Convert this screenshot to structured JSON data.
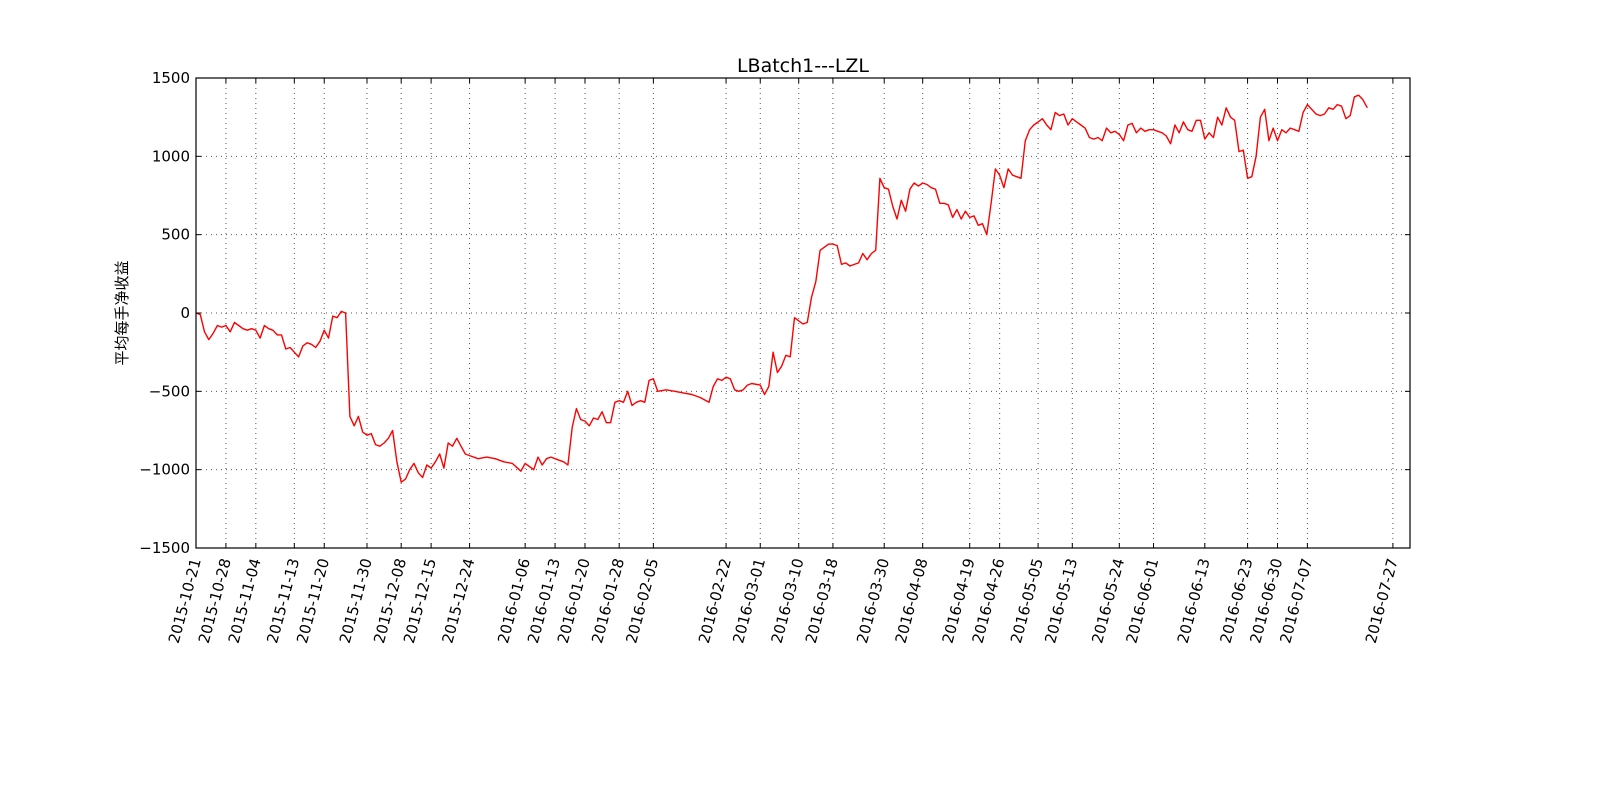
{
  "chart_data": {
    "type": "line",
    "title": "LBatch1---LZL",
    "xlabel": "",
    "ylabel": "平均每手净收益",
    "ylim": [
      -1500,
      1500
    ],
    "xlim": [
      "2015-10-21",
      "2016-07-31"
    ],
    "yticks": [
      1500,
      1000,
      500,
      0,
      -500,
      -1000,
      -1500
    ],
    "ytick_labels": [
      "1500",
      "1000",
      "500",
      "0",
      "−500",
      "−1000",
      "−1500"
    ],
    "xticks": [
      "2015-10-21",
      "2015-10-28",
      "2015-11-04",
      "2015-11-13",
      "2015-11-20",
      "2015-11-30",
      "2015-12-08",
      "2015-12-15",
      "2015-12-24",
      "2016-01-06",
      "2016-01-13",
      "2016-01-20",
      "2016-01-28",
      "2016-02-05",
      "2016-02-22",
      "2016-03-01",
      "2016-03-10",
      "2016-03-18",
      "2016-03-30",
      "2016-04-08",
      "2016-04-19",
      "2016-04-26",
      "2016-05-05",
      "2016-05-13",
      "2016-05-24",
      "2016-06-01",
      "2016-06-13",
      "2016-06-23",
      "2016-06-30",
      "2016-07-07",
      "2016-07-27"
    ],
    "grid": true,
    "series": [
      {
        "color": "#ff0000",
        "points": [
          [
            "2015-10-21",
            0
          ],
          [
            "2015-10-22",
            -10
          ],
          [
            "2015-10-23",
            -120
          ],
          [
            "2015-10-24",
            -170
          ],
          [
            "2015-10-25",
            -130
          ],
          [
            "2015-10-26",
            -80
          ],
          [
            "2015-10-27",
            -90
          ],
          [
            "2015-10-28",
            -80
          ],
          [
            "2015-10-29",
            -120
          ],
          [
            "2015-10-30",
            -60
          ],
          [
            "2015-10-31",
            -80
          ],
          [
            "2015-11-01",
            -100
          ],
          [
            "2015-11-02",
            -110
          ],
          [
            "2015-11-03",
            -100
          ],
          [
            "2015-11-04",
            -110
          ],
          [
            "2015-11-05",
            -160
          ],
          [
            "2015-11-06",
            -80
          ],
          [
            "2015-11-07",
            -100
          ],
          [
            "2015-11-08",
            -110
          ],
          [
            "2015-11-09",
            -140
          ],
          [
            "2015-11-10",
            -140
          ],
          [
            "2015-11-11",
            -230
          ],
          [
            "2015-11-12",
            -220
          ],
          [
            "2015-11-13",
            -250
          ],
          [
            "2015-11-14",
            -280
          ],
          [
            "2015-11-15",
            -210
          ],
          [
            "2015-11-16",
            -190
          ],
          [
            "2015-11-17",
            -200
          ],
          [
            "2015-11-18",
            -220
          ],
          [
            "2015-11-19",
            -180
          ],
          [
            "2015-11-20",
            -110
          ],
          [
            "2015-11-21",
            -160
          ],
          [
            "2015-11-22",
            -20
          ],
          [
            "2015-11-23",
            -30
          ],
          [
            "2015-11-24",
            10
          ],
          [
            "2015-11-25",
            0
          ],
          [
            "2015-11-26",
            -660
          ],
          [
            "2015-11-27",
            -720
          ],
          [
            "2015-11-28",
            -660
          ],
          [
            "2015-11-29",
            -760
          ],
          [
            "2015-11-30",
            -780
          ],
          [
            "2015-12-01",
            -770
          ],
          [
            "2015-12-02",
            -840
          ],
          [
            "2015-12-03",
            -850
          ],
          [
            "2015-12-04",
            -830
          ],
          [
            "2015-12-05",
            -800
          ],
          [
            "2015-12-06",
            -750
          ],
          [
            "2015-12-07",
            -950
          ],
          [
            "2015-12-08",
            -1080
          ],
          [
            "2015-12-09",
            -1060
          ],
          [
            "2015-12-10",
            -1000
          ],
          [
            "2015-12-11",
            -960
          ],
          [
            "2015-12-12",
            -1020
          ],
          [
            "2015-12-13",
            -1050
          ],
          [
            "2015-12-14",
            -970
          ],
          [
            "2015-12-15",
            -990
          ],
          [
            "2015-12-16",
            -950
          ],
          [
            "2015-12-17",
            -900
          ],
          [
            "2015-12-18",
            -990
          ],
          [
            "2015-12-19",
            -830
          ],
          [
            "2015-12-20",
            -850
          ],
          [
            "2015-12-21",
            -800
          ],
          [
            "2015-12-22",
            -850
          ],
          [
            "2015-12-23",
            -900
          ],
          [
            "2015-12-24",
            -910
          ],
          [
            "2015-12-26",
            -930
          ],
          [
            "2015-12-28",
            -920
          ],
          [
            "2015-12-30",
            -930
          ],
          [
            "2016-01-01",
            -950
          ],
          [
            "2016-01-03",
            -960
          ],
          [
            "2016-01-05",
            -1010
          ],
          [
            "2016-01-06",
            -960
          ],
          [
            "2016-01-07",
            -980
          ],
          [
            "2016-01-08",
            -1000
          ],
          [
            "2016-01-09",
            -920
          ],
          [
            "2016-01-10",
            -970
          ],
          [
            "2016-01-11",
            -930
          ],
          [
            "2016-01-12",
            -920
          ],
          [
            "2016-01-13",
            -930
          ],
          [
            "2016-01-14",
            -940
          ],
          [
            "2016-01-15",
            -950
          ],
          [
            "2016-01-16",
            -970
          ],
          [
            "2016-01-17",
            -730
          ],
          [
            "2016-01-18",
            -610
          ],
          [
            "2016-01-19",
            -680
          ],
          [
            "2016-01-20",
            -690
          ],
          [
            "2016-01-21",
            -720
          ],
          [
            "2016-01-22",
            -670
          ],
          [
            "2016-01-23",
            -680
          ],
          [
            "2016-01-24",
            -630
          ],
          [
            "2016-01-25",
            -700
          ],
          [
            "2016-01-26",
            -700
          ],
          [
            "2016-01-27",
            -570
          ],
          [
            "2016-01-28",
            -560
          ],
          [
            "2016-01-29",
            -570
          ],
          [
            "2016-01-30",
            -500
          ],
          [
            "2016-01-31",
            -590
          ],
          [
            "2016-02-01",
            -570
          ],
          [
            "2016-02-02",
            -560
          ],
          [
            "2016-02-03",
            -570
          ],
          [
            "2016-02-04",
            -430
          ],
          [
            "2016-02-05",
            -420
          ],
          [
            "2016-02-06",
            -500
          ],
          [
            "2016-02-08",
            -490
          ],
          [
            "2016-02-10",
            -500
          ],
          [
            "2016-02-12",
            -510
          ],
          [
            "2016-02-14",
            -520
          ],
          [
            "2016-02-16",
            -540
          ],
          [
            "2016-02-18",
            -570
          ],
          [
            "2016-02-19",
            -470
          ],
          [
            "2016-02-20",
            -420
          ],
          [
            "2016-02-21",
            -430
          ],
          [
            "2016-02-22",
            -410
          ],
          [
            "2016-02-23",
            -420
          ],
          [
            "2016-02-24",
            -490
          ],
          [
            "2016-02-25",
            -500
          ],
          [
            "2016-02-26",
            -490
          ],
          [
            "2016-02-27",
            -460
          ],
          [
            "2016-02-28",
            -450
          ],
          [
            "2016-03-01",
            -460
          ],
          [
            "2016-03-02",
            -520
          ],
          [
            "2016-03-03",
            -470
          ],
          [
            "2016-03-04",
            -250
          ],
          [
            "2016-03-05",
            -380
          ],
          [
            "2016-03-06",
            -340
          ],
          [
            "2016-03-07",
            -270
          ],
          [
            "2016-03-08",
            -280
          ],
          [
            "2016-03-09",
            -30
          ],
          [
            "2016-03-10",
            -50
          ],
          [
            "2016-03-11",
            -70
          ],
          [
            "2016-03-12",
            -60
          ],
          [
            "2016-03-13",
            100
          ],
          [
            "2016-03-14",
            200
          ],
          [
            "2016-03-15",
            400
          ],
          [
            "2016-03-16",
            420
          ],
          [
            "2016-03-17",
            440
          ],
          [
            "2016-03-18",
            440
          ],
          [
            "2016-03-19",
            430
          ],
          [
            "2016-03-20",
            310
          ],
          [
            "2016-03-21",
            320
          ],
          [
            "2016-03-22",
            300
          ],
          [
            "2016-03-23",
            310
          ],
          [
            "2016-03-24",
            320
          ],
          [
            "2016-03-25",
            380
          ],
          [
            "2016-03-26",
            340
          ],
          [
            "2016-03-27",
            380
          ],
          [
            "2016-03-28",
            400
          ],
          [
            "2016-03-29",
            860
          ],
          [
            "2016-03-30",
            800
          ],
          [
            "2016-03-31",
            790
          ],
          [
            "2016-04-01",
            680
          ],
          [
            "2016-04-02",
            600
          ],
          [
            "2016-04-03",
            720
          ],
          [
            "2016-04-04",
            650
          ],
          [
            "2016-04-05",
            790
          ],
          [
            "2016-04-06",
            830
          ],
          [
            "2016-04-07",
            810
          ],
          [
            "2016-04-08",
            830
          ],
          [
            "2016-04-09",
            820
          ],
          [
            "2016-04-10",
            800
          ],
          [
            "2016-04-11",
            790
          ],
          [
            "2016-04-12",
            700
          ],
          [
            "2016-04-13",
            700
          ],
          [
            "2016-04-14",
            690
          ],
          [
            "2016-04-15",
            610
          ],
          [
            "2016-04-16",
            660
          ],
          [
            "2016-04-17",
            600
          ],
          [
            "2016-04-18",
            650
          ],
          [
            "2016-04-19",
            610
          ],
          [
            "2016-04-20",
            620
          ],
          [
            "2016-04-21",
            560
          ],
          [
            "2016-04-22",
            570
          ],
          [
            "2016-04-23",
            500
          ],
          [
            "2016-04-24",
            700
          ],
          [
            "2016-04-25",
            920
          ],
          [
            "2016-04-26",
            880
          ],
          [
            "2016-04-27",
            800
          ],
          [
            "2016-04-28",
            920
          ],
          [
            "2016-04-29",
            880
          ],
          [
            "2016-04-30",
            870
          ],
          [
            "2016-05-01",
            860
          ],
          [
            "2016-05-02",
            1100
          ],
          [
            "2016-05-03",
            1170
          ],
          [
            "2016-05-04",
            1200
          ],
          [
            "2016-05-05",
            1220
          ],
          [
            "2016-05-06",
            1240
          ],
          [
            "2016-05-07",
            1200
          ],
          [
            "2016-05-08",
            1170
          ],
          [
            "2016-05-09",
            1280
          ],
          [
            "2016-05-10",
            1260
          ],
          [
            "2016-05-11",
            1270
          ],
          [
            "2016-05-12",
            1200
          ],
          [
            "2016-05-13",
            1240
          ],
          [
            "2016-05-14",
            1220
          ],
          [
            "2016-05-15",
            1200
          ],
          [
            "2016-05-16",
            1180
          ],
          [
            "2016-05-17",
            1120
          ],
          [
            "2016-05-18",
            1110
          ],
          [
            "2016-05-19",
            1120
          ],
          [
            "2016-05-20",
            1100
          ],
          [
            "2016-05-21",
            1180
          ],
          [
            "2016-05-22",
            1150
          ],
          [
            "2016-05-23",
            1160
          ],
          [
            "2016-05-24",
            1140
          ],
          [
            "2016-05-25",
            1100
          ],
          [
            "2016-05-26",
            1200
          ],
          [
            "2016-05-27",
            1210
          ],
          [
            "2016-05-28",
            1150
          ],
          [
            "2016-05-29",
            1180
          ],
          [
            "2016-05-30",
            1160
          ],
          [
            "2016-05-31",
            1170
          ],
          [
            "2016-06-01",
            1170
          ],
          [
            "2016-06-02",
            1160
          ],
          [
            "2016-06-03",
            1150
          ],
          [
            "2016-06-04",
            1130
          ],
          [
            "2016-06-05",
            1080
          ],
          [
            "2016-06-06",
            1200
          ],
          [
            "2016-06-07",
            1150
          ],
          [
            "2016-06-08",
            1220
          ],
          [
            "2016-06-09",
            1170
          ],
          [
            "2016-06-10",
            1160
          ],
          [
            "2016-06-11",
            1230
          ],
          [
            "2016-06-12",
            1230
          ],
          [
            "2016-06-13",
            1110
          ],
          [
            "2016-06-14",
            1150
          ],
          [
            "2016-06-15",
            1120
          ],
          [
            "2016-06-16",
            1250
          ],
          [
            "2016-06-17",
            1200
          ],
          [
            "2016-06-18",
            1310
          ],
          [
            "2016-06-19",
            1250
          ],
          [
            "2016-06-20",
            1230
          ],
          [
            "2016-06-21",
            1030
          ],
          [
            "2016-06-22",
            1040
          ],
          [
            "2016-06-23",
            860
          ],
          [
            "2016-06-24",
            870
          ],
          [
            "2016-06-25",
            1000
          ],
          [
            "2016-06-26",
            1250
          ],
          [
            "2016-06-27",
            1300
          ],
          [
            "2016-06-28",
            1100
          ],
          [
            "2016-06-29",
            1180
          ],
          [
            "2016-06-30",
            1100
          ],
          [
            "2016-07-01",
            1170
          ],
          [
            "2016-07-02",
            1150
          ],
          [
            "2016-07-03",
            1180
          ],
          [
            "2016-07-04",
            1170
          ],
          [
            "2016-07-05",
            1160
          ],
          [
            "2016-07-06",
            1280
          ],
          [
            "2016-07-07",
            1330
          ],
          [
            "2016-07-08",
            1300
          ],
          [
            "2016-07-09",
            1270
          ],
          [
            "2016-07-10",
            1260
          ],
          [
            "2016-07-11",
            1270
          ],
          [
            "2016-07-12",
            1310
          ],
          [
            "2016-07-13",
            1300
          ],
          [
            "2016-07-14",
            1330
          ],
          [
            "2016-07-15",
            1320
          ],
          [
            "2016-07-16",
            1240
          ],
          [
            "2016-07-17",
            1260
          ],
          [
            "2016-07-18",
            1380
          ],
          [
            "2016-07-19",
            1390
          ],
          [
            "2016-07-20",
            1360
          ],
          [
            "2016-07-21",
            1310
          ]
        ]
      }
    ]
  }
}
